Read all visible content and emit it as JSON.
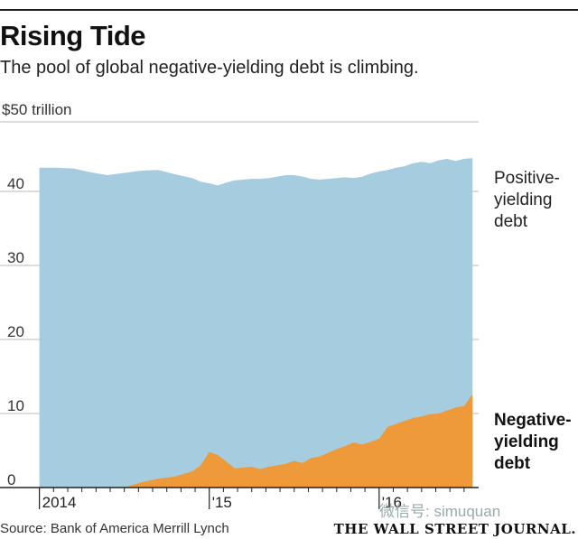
{
  "header": {
    "title": "Rising Tide",
    "subtitle": "The pool of global negative-yielding debt is climbing.",
    "unit_label": "$50 trillion"
  },
  "series_labels": {
    "positive": "Positive-yielding debt",
    "negative": "Negative-yielding debt"
  },
  "footer": {
    "source": "Source: Bank of America Merrill Lynch",
    "brand": "THE WALL STREET JOURNAL.",
    "watermark": "微信号: simuquan"
  },
  "colors": {
    "positive": "#a6cce0",
    "negative": "#ee9a3a",
    "grid": "#bbbbbb",
    "axis": "#222222"
  },
  "chart_data": {
    "type": "area",
    "stacked": false,
    "title": "Rising Tide",
    "ylabel": "$50 trillion",
    "ylim": [
      0,
      50
    ],
    "yticks": [
      0,
      10,
      20,
      30,
      40
    ],
    "ytick_labels": [
      "0",
      "10",
      "20",
      "30",
      "40"
    ],
    "xlim": [
      2013.97,
      2016.57
    ],
    "xtick_labels": [
      {
        "x": 2014.0,
        "label": "2014"
      },
      {
        "x": 2015.0,
        "label": "'15"
      },
      {
        "x": 2016.0,
        "label": "'16"
      }
    ],
    "grid": true,
    "x": [
      2014.0,
      2014.1,
      2014.2,
      2014.3,
      2014.4,
      2014.5,
      2014.6,
      2014.7,
      2014.8,
      2014.9,
      2014.95,
      2015.0,
      2015.05,
      2015.1,
      2015.15,
      2015.2,
      2015.25,
      2015.3,
      2015.35,
      2015.4,
      2015.45,
      2015.5,
      2015.55,
      2015.6,
      2015.65,
      2015.7,
      2015.75,
      2015.8,
      2015.85,
      2015.9,
      2015.95,
      2016.0,
      2016.05,
      2016.1,
      2016.15,
      2016.2,
      2016.25,
      2016.3,
      2016.35,
      2016.4,
      2016.45,
      2016.5,
      2016.55
    ],
    "series": [
      {
        "name": "Positive-yielding debt",
        "values": [
          43.2,
          43.2,
          43.1,
          42.6,
          42.2,
          42.5,
          42.8,
          42.9,
          42.3,
          41.8,
          41.3,
          41.1,
          40.8,
          41.2,
          41.5,
          41.6,
          41.7,
          41.7,
          41.8,
          42.0,
          42.2,
          42.2,
          42.0,
          41.7,
          41.6,
          41.7,
          41.8,
          41.9,
          41.8,
          42.0,
          42.4,
          42.7,
          42.9,
          43.2,
          43.4,
          43.8,
          44.0,
          43.8,
          44.2,
          44.4,
          44.1,
          44.4,
          44.5
        ]
      },
      {
        "name": "Negative-yielding debt",
        "values": [
          0.0,
          0.0,
          0.0,
          0.0,
          0.0,
          0.0,
          0.7,
          1.2,
          1.5,
          2.2,
          3.0,
          4.8,
          4.4,
          3.5,
          2.6,
          2.7,
          2.8,
          2.5,
          2.8,
          3.0,
          3.2,
          3.6,
          3.3,
          4.0,
          4.2,
          4.7,
          5.2,
          5.6,
          6.1,
          5.8,
          6.2,
          6.6,
          8.2,
          8.6,
          9.0,
          9.4,
          9.6,
          9.9,
          10.0,
          10.4,
          10.8,
          11.0,
          12.6
        ]
      }
    ]
  }
}
